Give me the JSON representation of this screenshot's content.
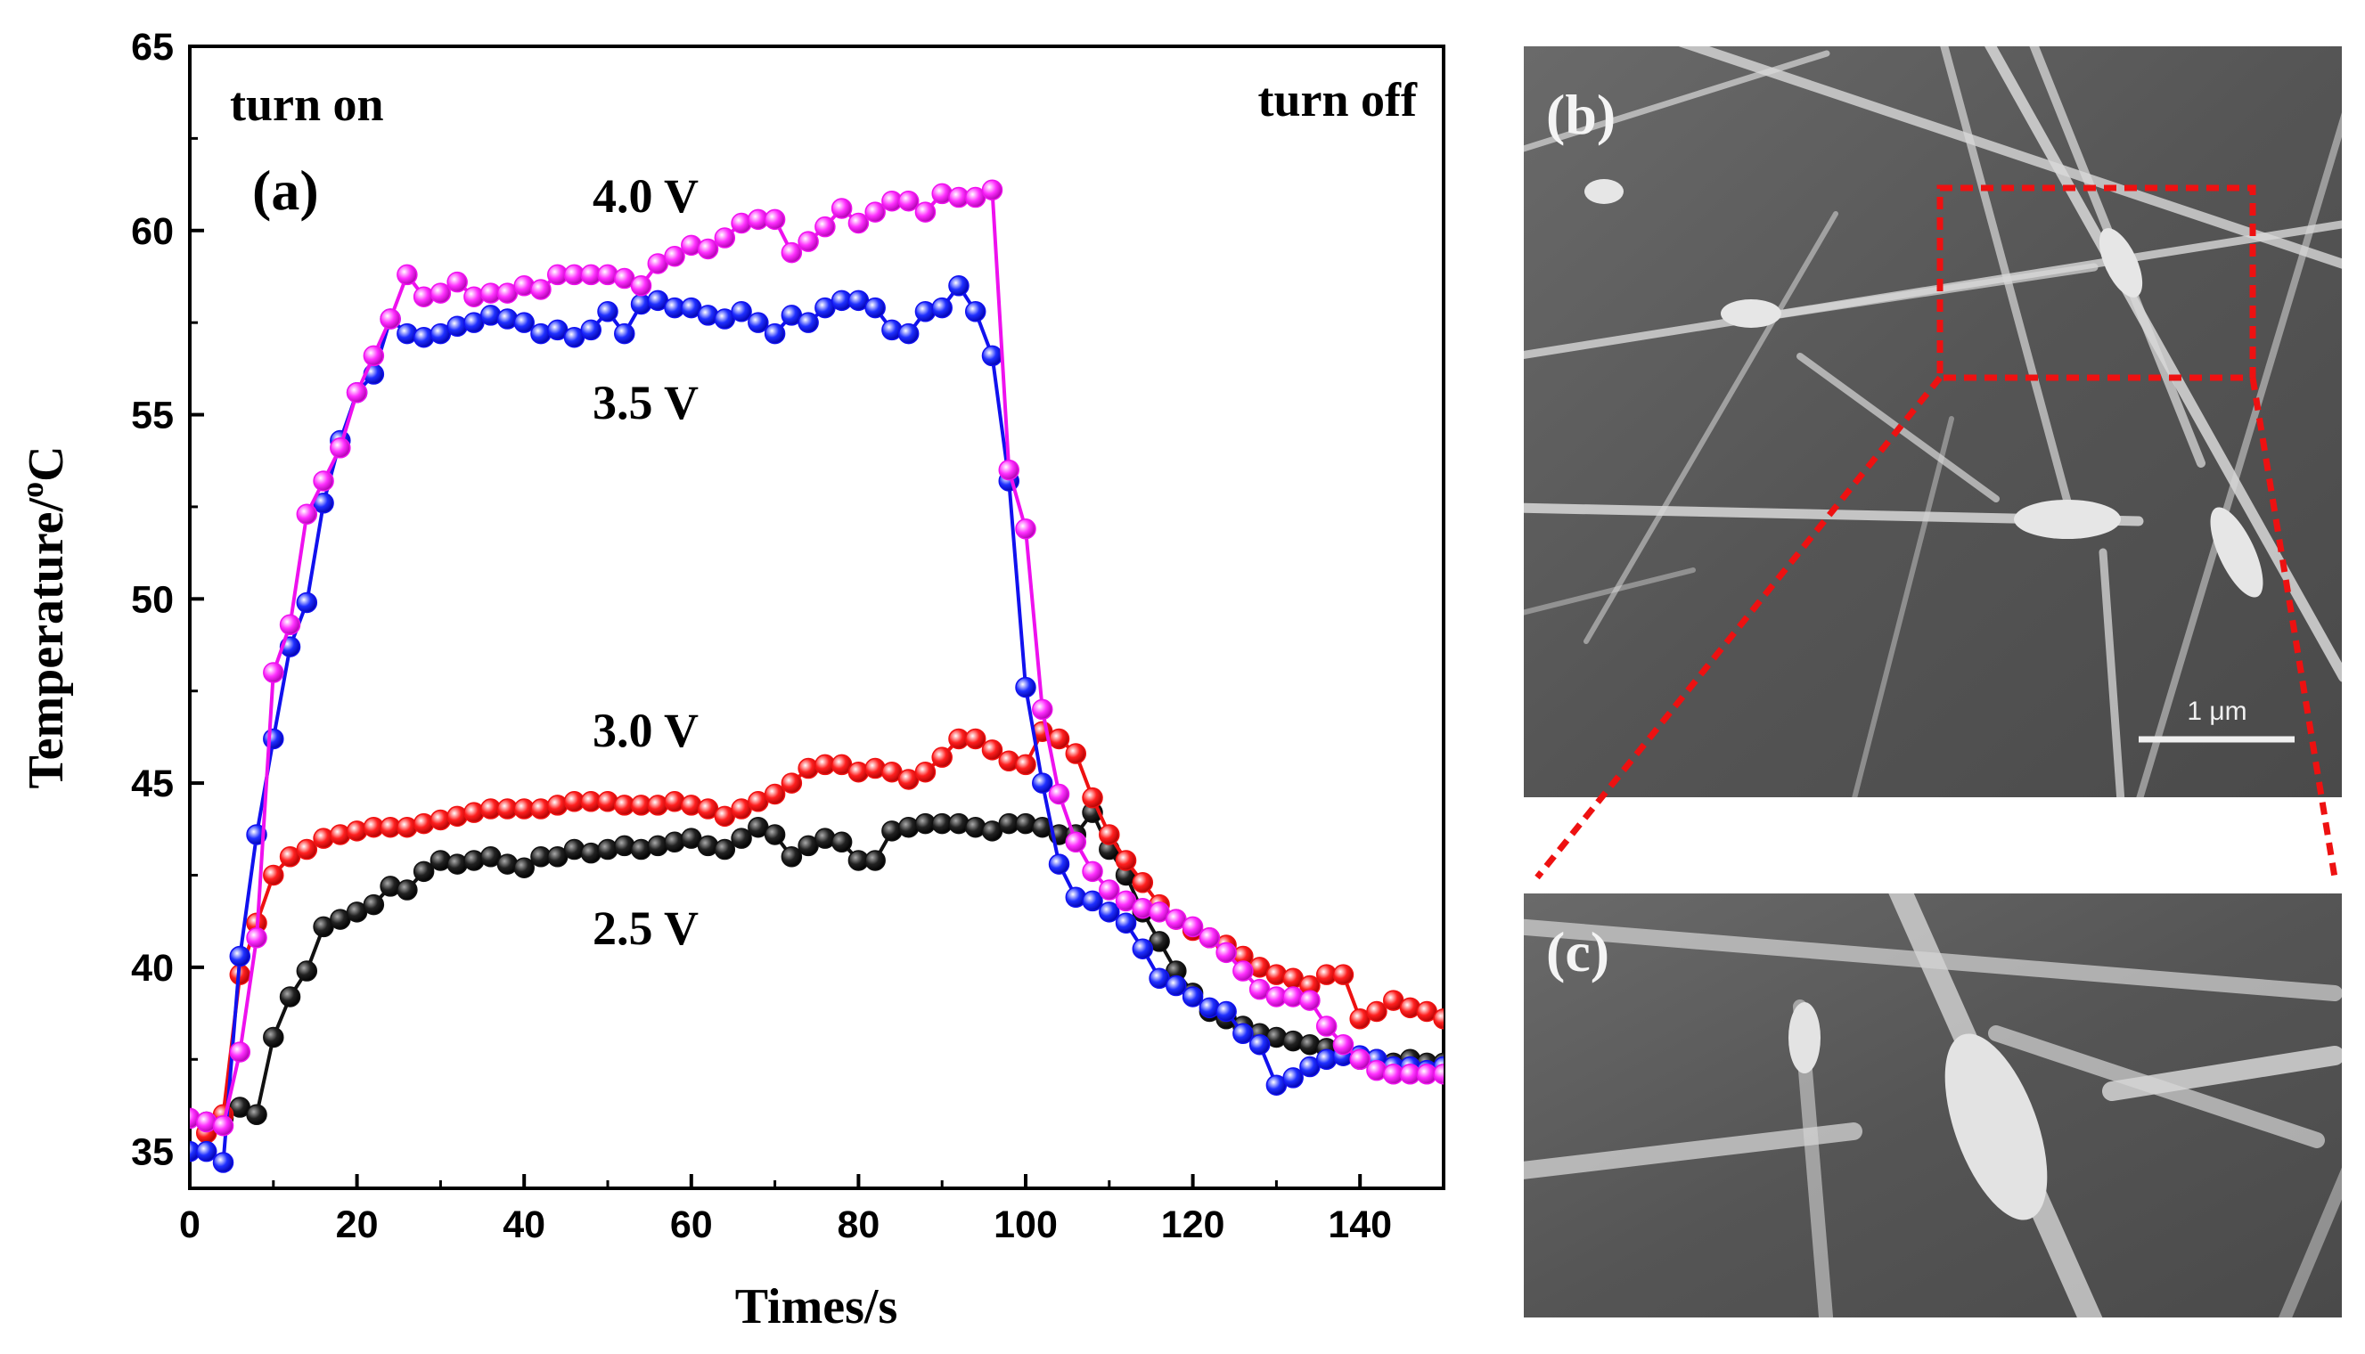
{
  "chart_data": {
    "type": "line",
    "panel_label": "(a)",
    "xlabel": "Times/s",
    "ylabel_main": "Temperature/",
    "ylabel_sup": "o",
    "ylabel_unit": "C",
    "xlim": [
      0,
      150
    ],
    "ylim": [
      34,
      65
    ],
    "xticks": [
      0,
      20,
      40,
      60,
      80,
      100,
      120,
      140
    ],
    "yticks": [
      35,
      40,
      45,
      50,
      55,
      60,
      65
    ],
    "annotations": {
      "turn_on": "turn on",
      "turn_off": "turn off"
    },
    "series": [
      {
        "name": "2.5 V",
        "color": "#111111",
        "x": [
          2,
          4,
          6,
          8,
          10,
          12,
          14,
          16,
          18,
          20,
          22,
          24,
          26,
          28,
          30,
          32,
          34,
          36,
          38,
          40,
          42,
          44,
          46,
          48,
          50,
          52,
          54,
          56,
          58,
          60,
          62,
          64,
          66,
          68,
          70,
          72,
          74,
          76,
          78,
          80,
          82,
          84,
          86,
          88,
          90,
          92,
          94,
          96,
          98,
          100,
          102,
          104,
          106,
          108,
          110,
          112,
          114,
          116,
          118,
          120,
          122,
          124,
          126,
          128,
          130,
          132,
          134,
          136,
          138,
          140,
          142,
          144,
          146,
          148,
          150
        ],
        "values": [
          35.8,
          35.9,
          36.2,
          36.0,
          38.1,
          39.2,
          39.9,
          41.1,
          41.3,
          41.5,
          41.7,
          42.2,
          42.1,
          42.6,
          42.9,
          42.8,
          42.9,
          43.0,
          42.8,
          42.7,
          43.0,
          43.0,
          43.2,
          43.1,
          43.2,
          43.3,
          43.2,
          43.3,
          43.4,
          43.5,
          43.3,
          43.2,
          43.5,
          43.8,
          43.6,
          43.0,
          43.3,
          43.5,
          43.4,
          42.9,
          42.9,
          43.7,
          43.8,
          43.9,
          43.9,
          43.9,
          43.8,
          43.7,
          43.9,
          43.9,
          43.8,
          43.6,
          43.6,
          44.2,
          43.2,
          42.5,
          41.5,
          40.7,
          39.9,
          39.3,
          38.8,
          38.6,
          38.4,
          38.2,
          38.1,
          38.0,
          37.9,
          37.8,
          37.6,
          37.5,
          37.5,
          37.4,
          37.5,
          37.4,
          37.4
        ]
      },
      {
        "name": "3.0 V",
        "color": "#ee1111",
        "x": [
          2,
          4,
          6,
          8,
          10,
          12,
          14,
          16,
          18,
          20,
          22,
          24,
          26,
          28,
          30,
          32,
          34,
          36,
          38,
          40,
          42,
          44,
          46,
          48,
          50,
          52,
          54,
          56,
          58,
          60,
          62,
          64,
          66,
          68,
          70,
          72,
          74,
          76,
          78,
          80,
          82,
          84,
          86,
          88,
          90,
          92,
          94,
          96,
          98,
          100,
          102,
          104,
          106,
          108,
          110,
          112,
          114,
          116,
          118,
          120,
          122,
          124,
          126,
          128,
          130,
          132,
          134,
          136,
          138,
          140,
          142,
          144,
          146,
          148,
          150
        ],
        "values": [
          35.5,
          36.0,
          39.8,
          41.2,
          42.5,
          43.0,
          43.2,
          43.5,
          43.6,
          43.7,
          43.8,
          43.8,
          43.8,
          43.9,
          44.0,
          44.1,
          44.2,
          44.3,
          44.3,
          44.3,
          44.3,
          44.4,
          44.5,
          44.5,
          44.5,
          44.4,
          44.4,
          44.4,
          44.5,
          44.4,
          44.3,
          44.1,
          44.3,
          44.5,
          44.7,
          45.0,
          45.4,
          45.5,
          45.5,
          45.3,
          45.4,
          45.3,
          45.1,
          45.3,
          45.7,
          46.2,
          46.2,
          45.9,
          45.6,
          45.5,
          46.4,
          46.2,
          45.8,
          44.6,
          43.6,
          42.9,
          42.3,
          41.7,
          41.3,
          41.0,
          40.8,
          40.6,
          40.3,
          40.0,
          39.8,
          39.7,
          39.5,
          39.8,
          39.8,
          38.6,
          38.8,
          39.1,
          38.9,
          38.8,
          38.6
        ]
      },
      {
        "name": "3.5 V",
        "color": "#1111ee",
        "x": [
          0,
          2,
          4,
          6,
          8,
          10,
          12,
          14,
          16,
          18,
          20,
          22,
          24,
          26,
          28,
          30,
          32,
          34,
          36,
          38,
          40,
          42,
          44,
          46,
          48,
          50,
          52,
          54,
          56,
          58,
          60,
          62,
          64,
          66,
          68,
          70,
          72,
          74,
          76,
          78,
          80,
          82,
          84,
          86,
          88,
          90,
          92,
          94,
          96,
          98,
          100,
          102,
          104,
          106,
          108,
          110,
          112,
          114,
          116,
          118,
          120,
          122,
          124,
          126,
          128,
          130,
          132,
          134,
          136,
          138,
          140,
          142,
          144,
          146,
          148,
          150
        ],
        "values": [
          35.0,
          35.0,
          34.7,
          40.3,
          43.6,
          46.2,
          48.7,
          49.9,
          52.6,
          54.3,
          55.6,
          56.1,
          57.6,
          57.2,
          57.1,
          57.2,
          57.4,
          57.5,
          57.7,
          57.6,
          57.5,
          57.2,
          57.3,
          57.1,
          57.3,
          57.8,
          57.2,
          58.0,
          58.1,
          57.9,
          57.9,
          57.7,
          57.6,
          57.8,
          57.5,
          57.2,
          57.7,
          57.5,
          57.9,
          58.1,
          58.1,
          57.9,
          57.3,
          57.2,
          57.8,
          57.9,
          58.5,
          57.8,
          56.6,
          53.2,
          47.6,
          45.0,
          42.8,
          41.9,
          41.8,
          41.5,
          41.2,
          40.5,
          39.7,
          39.5,
          39.2,
          38.9,
          38.8,
          38.2,
          37.9,
          36.8,
          37.0,
          37.3,
          37.5,
          37.6,
          37.6,
          37.5,
          37.3,
          37.3,
          37.2,
          37.3
        ]
      },
      {
        "name": "4.0 V",
        "color": "#ee11ee",
        "x": [
          0,
          2,
          4,
          6,
          8,
          10,
          12,
          14,
          16,
          18,
          20,
          22,
          24,
          26,
          28,
          30,
          32,
          34,
          36,
          38,
          40,
          42,
          44,
          46,
          48,
          50,
          52,
          54,
          56,
          58,
          60,
          62,
          64,
          66,
          68,
          70,
          72,
          74,
          76,
          78,
          80,
          82,
          84,
          86,
          88,
          90,
          92,
          94,
          96,
          98,
          100,
          102,
          104,
          106,
          108,
          110,
          112,
          114,
          116,
          118,
          120,
          122,
          124,
          126,
          128,
          130,
          132,
          134,
          136,
          138,
          140,
          142,
          144,
          146,
          148,
          150
        ],
        "values": [
          35.9,
          35.8,
          35.7,
          37.7,
          40.8,
          48.0,
          49.3,
          52.3,
          53.2,
          54.1,
          55.6,
          56.6,
          57.6,
          58.8,
          58.2,
          58.3,
          58.6,
          58.2,
          58.3,
          58.3,
          58.5,
          58.4,
          58.8,
          58.8,
          58.8,
          58.8,
          58.7,
          58.5,
          59.1,
          59.3,
          59.6,
          59.5,
          59.8,
          60.2,
          60.3,
          60.3,
          59.4,
          59.7,
          60.1,
          60.6,
          60.2,
          60.5,
          60.8,
          60.8,
          60.5,
          61.0,
          60.9,
          60.9,
          61.1,
          53.5,
          51.9,
          47.0,
          44.7,
          43.4,
          42.6,
          42.1,
          41.8,
          41.6,
          41.5,
          41.3,
          41.1,
          40.8,
          40.4,
          39.9,
          39.4,
          39.2,
          39.2,
          39.1,
          38.4,
          37.9,
          37.5,
          37.2,
          37.1,
          37.1,
          37.1,
          37.1
        ]
      }
    ]
  },
  "micrographs": {
    "panel_b_label": "(b)",
    "panel_c_label": "(c)",
    "scale_bar_label": "1 μm",
    "highlight_color": "#ee1111"
  }
}
